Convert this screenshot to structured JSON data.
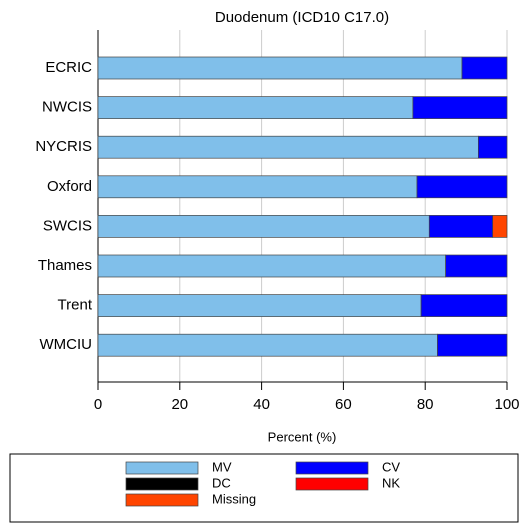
{
  "chart_data": {
    "type": "stacked-bar-horizontal",
    "title": "Duodenum (ICD10 C17.0)",
    "xlabel": "Percent (%)",
    "categories": [
      "ECRIC",
      "NWCIS",
      "NYCRIS",
      "Oxford",
      "SWCIS",
      "Thames",
      "Trent",
      "WMCIU"
    ],
    "series": [
      {
        "name": "MV",
        "color": "#80bfea",
        "values": [
          89,
          77,
          93,
          78,
          81,
          85,
          79,
          83
        ]
      },
      {
        "name": "CV",
        "color": "#0000ff",
        "values": [
          11,
          23,
          7,
          22,
          15.5,
          15,
          21,
          17
        ]
      },
      {
        "name": "DC",
        "color": "#000000",
        "values": [
          0,
          0,
          0,
          0,
          0,
          0,
          0,
          0
        ]
      },
      {
        "name": "NK",
        "color": "#ff0000",
        "values": [
          0,
          0,
          0,
          0,
          0,
          0,
          0,
          0
        ]
      },
      {
        "name": "Missing",
        "color": "#ff4500",
        "values": [
          0,
          0,
          0,
          0,
          3.5,
          0,
          0,
          0
        ]
      }
    ],
    "xlim": [
      0,
      100
    ],
    "xticks": [
      0,
      20,
      40,
      60,
      80,
      100
    ],
    "grid": true
  }
}
